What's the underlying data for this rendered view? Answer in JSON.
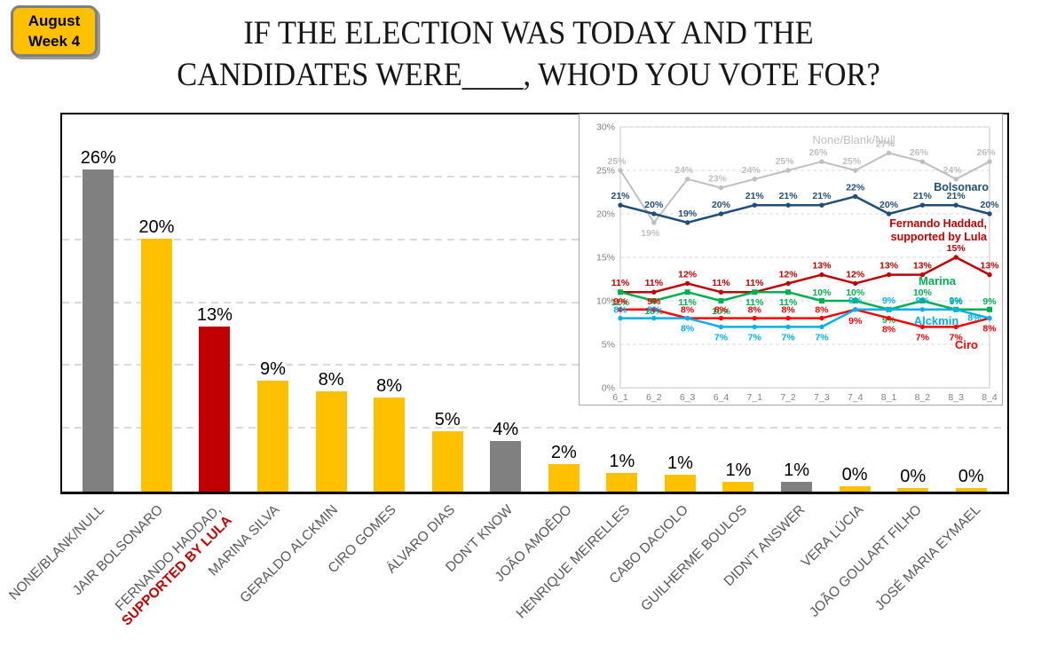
{
  "badge": {
    "line1": "August",
    "line2": "Week 4"
  },
  "title": {
    "line1": "IF THE ELECTION WAS TODAY AND THE",
    "line2": "CANDIDATES WERE____, WHO'D YOU VOTE FOR?"
  },
  "palette": {
    "gold": "#FFC000",
    "dark_red": "#C00000",
    "gray": "#808080",
    "navy": "#1F4E79",
    "light_gray": "#BFBFBF",
    "green": "#00B050",
    "cyan": "#00B0F0",
    "bright_red": "#FF0000",
    "axis_text": "#808080",
    "xlabel_text": "#595959",
    "gridline": "#D9D9D9"
  },
  "chart_data": [
    {
      "type": "bar",
      "title": "IF THE ELECTION WAS TODAY AND THE CANDIDATES WERE____, WHO'D YOU VOTE FOR?",
      "ylim": [
        0,
        30
      ],
      "gridlines_pct": [
        5,
        10,
        15,
        20,
        25
      ],
      "bars": [
        {
          "category": "NONE/BLANK/NULL",
          "value": 26,
          "label": "26%",
          "color": "gray"
        },
        {
          "category": "JAIR BOLSONARO",
          "value": 20,
          "label": "20%",
          "color": "gold"
        },
        {
          "category": "FERNANDO HADDAD,",
          "category_line2": "SUPPORTED BY LULA",
          "value": 13,
          "label": "13%",
          "color": "dark_red"
        },
        {
          "category": "MARINA SILVA",
          "value": 9,
          "label": "9%",
          "color": "gold"
        },
        {
          "category": "GERALDO ALCKMIN",
          "value": 8,
          "label": "8%",
          "color": "gold"
        },
        {
          "category": "CIRO GOMES",
          "value": 8,
          "label": "8%",
          "color": "gold"
        },
        {
          "category": "ÁLVARO DIAS",
          "value": 5,
          "label": "5%",
          "color": "gold"
        },
        {
          "category": "DON'T KNOW",
          "value": 4,
          "label": "4%",
          "color": "gray"
        },
        {
          "category": "JOÃO AMOÊDO",
          "value": 2,
          "label": "2%",
          "color": "gold"
        },
        {
          "category": "HENRIQUE MEIRELLES",
          "value": 1,
          "label": "1%",
          "color": "gold"
        },
        {
          "category": "CABO DACIOLO",
          "value": 1,
          "label": "1%",
          "color": "gold"
        },
        {
          "category": "GUILHERME BOULOS",
          "value": 1,
          "label": "1%",
          "color": "gold"
        },
        {
          "category": "DIDN'T ANSWER",
          "value": 1,
          "label": "1%",
          "color": "gray"
        },
        {
          "category": "VERA LÚCIA",
          "value": 0,
          "label": "0%",
          "color": "gold"
        },
        {
          "category": "JOÃO GOULART FILHO",
          "value": 0,
          "label": "0%",
          "color": "gold"
        },
        {
          "category": "JOSÉ MARIA EYMAEL",
          "value": 0,
          "label": "0%",
          "color": "gold"
        }
      ]
    },
    {
      "type": "line",
      "x": [
        "6_1",
        "6_2",
        "6_3",
        "6_4",
        "7_1",
        "7_2",
        "7_3",
        "7_4",
        "8_1",
        "8_2",
        "8_3",
        "8_4"
      ],
      "ylim": [
        0,
        30
      ],
      "yticks": [
        "0%",
        "5%",
        "10%",
        "15%",
        "20%",
        "25%",
        "30%"
      ],
      "grid": "dashed horizontal",
      "legend_position": "in-plot",
      "series": [
        {
          "name": "None/Blank/Null",
          "color": "light_gray",
          "values": [
            25,
            19,
            24,
            23,
            24,
            25,
            26,
            25,
            27,
            26,
            24,
            26
          ]
        },
        {
          "name": "Bolsonaro",
          "color": "navy",
          "values": [
            21,
            20,
            19,
            20,
            21,
            21,
            21,
            22,
            20,
            21,
            21,
            20
          ]
        },
        {
          "name": "Fernando Haddad,",
          "name_line2": "supported by Lula",
          "color": "dark_red",
          "values": [
            11,
            11,
            12,
            11,
            11,
            12,
            13,
            12,
            13,
            13,
            15,
            13
          ]
        },
        {
          "name": "Marina",
          "color": "green",
          "values": [
            11,
            10,
            11,
            10,
            11,
            11,
            10,
            10,
            9,
            10,
            9,
            9
          ]
        },
        {
          "name": "Ciro",
          "color": "bright_red",
          "values": [
            9,
            9,
            8,
            8,
            8,
            8,
            8,
            9,
            8,
            7,
            7,
            8
          ]
        },
        {
          "name": "Alckmin",
          "color": "cyan",
          "values": [
            8,
            8,
            8,
            7,
            7,
            7,
            7,
            9,
            9,
            9,
            9,
            8
          ]
        }
      ]
    }
  ]
}
